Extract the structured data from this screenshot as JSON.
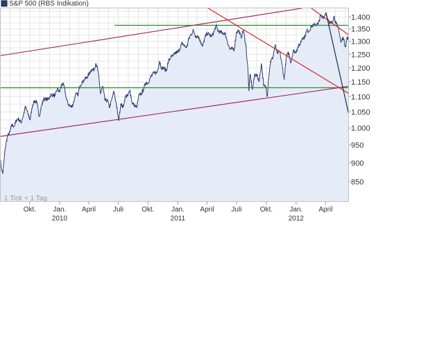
{
  "chart_data": {
    "type": "area",
    "title": "S&P 500 (RBS Indikation)",
    "note": "1 Tick = 1 Tag",
    "ylim": [
      800,
      1440
    ],
    "y_scale": "log",
    "y_ticks": [
      850,
      900,
      950,
      1000,
      1050,
      1100,
      1150,
      1200,
      1250,
      1300,
      1350,
      1400
    ],
    "y_tick_labels": [
      "850",
      "900",
      "950",
      "1.000",
      "1.050",
      "1.100",
      "1.150",
      "1.200",
      "1.250",
      "1.300",
      "1.350",
      "1.400"
    ],
    "x_range": [
      "2009-07-01",
      "2012-06-12"
    ],
    "x_ticks": [
      {
        "date": "2009-10-01",
        "label": "Okt.",
        "year": ""
      },
      {
        "date": "2010-01-01",
        "label": "Jan.",
        "year": "2010"
      },
      {
        "date": "2010-04-01",
        "label": "April",
        "year": ""
      },
      {
        "date": "2010-07-01",
        "label": "Juli",
        "year": ""
      },
      {
        "date": "2010-10-01",
        "label": "Okt.",
        "year": ""
      },
      {
        "date": "2011-01-01",
        "label": "Jan.",
        "year": "2011"
      },
      {
        "date": "2011-04-01",
        "label": "April",
        "year": ""
      },
      {
        "date": "2011-07-01",
        "label": "Juli",
        "year": ""
      },
      {
        "date": "2011-10-01",
        "label": "Okt.",
        "year": ""
      },
      {
        "date": "2012-01-01",
        "label": "Jan.",
        "year": "2012"
      },
      {
        "date": "2012-04-01",
        "label": "April",
        "year": ""
      }
    ],
    "grid": true,
    "series": [
      {
        "name": "S&P 500 (RBS Indikation)",
        "color": "#2a3f6e",
        "fill": "#e6ebf8",
        "points": [
          [
            "2009-07-01",
            920
          ],
          [
            "2009-07-06",
            880
          ],
          [
            "2009-07-10",
            872
          ],
          [
            "2009-07-17",
            940
          ],
          [
            "2009-07-24",
            975
          ],
          [
            "2009-07-31",
            987
          ],
          [
            "2009-08-07",
            1010
          ],
          [
            "2009-08-14",
            1005
          ],
          [
            "2009-08-21",
            1026
          ],
          [
            "2009-08-28",
            1028
          ],
          [
            "2009-09-04",
            1016
          ],
          [
            "2009-09-11",
            1040
          ],
          [
            "2009-09-18",
            1068
          ],
          [
            "2009-09-25",
            1045
          ],
          [
            "2009-10-02",
            1025
          ],
          [
            "2009-10-09",
            1071
          ],
          [
            "2009-10-16",
            1087
          ],
          [
            "2009-10-23",
            1079
          ],
          [
            "2009-10-30",
            1036
          ],
          [
            "2009-11-06",
            1069
          ],
          [
            "2009-11-13",
            1093
          ],
          [
            "2009-11-20",
            1091
          ],
          [
            "2009-11-27",
            1091
          ],
          [
            "2009-12-04",
            1105
          ],
          [
            "2009-12-11",
            1106
          ],
          [
            "2009-12-18",
            1102
          ],
          [
            "2009-12-25",
            1126
          ],
          [
            "2010-01-01",
            1115
          ],
          [
            "2010-01-08",
            1144
          ],
          [
            "2010-01-15",
            1136
          ],
          [
            "2010-01-22",
            1091
          ],
          [
            "2010-01-29",
            1073
          ],
          [
            "2010-02-05",
            1066
          ],
          [
            "2010-02-12",
            1075
          ],
          [
            "2010-02-19",
            1109
          ],
          [
            "2010-02-26",
            1104
          ],
          [
            "2010-03-05",
            1138
          ],
          [
            "2010-03-12",
            1149
          ],
          [
            "2010-03-19",
            1159
          ],
          [
            "2010-03-26",
            1166
          ],
          [
            "2010-04-02",
            1178
          ],
          [
            "2010-04-09",
            1194
          ],
          [
            "2010-04-16",
            1192
          ],
          [
            "2010-04-23",
            1217
          ],
          [
            "2010-04-30",
            1186
          ],
          [
            "2010-05-07",
            1110
          ],
          [
            "2010-05-14",
            1135
          ],
          [
            "2010-05-21",
            1087
          ],
          [
            "2010-05-28",
            1089
          ],
          [
            "2010-06-04",
            1064
          ],
          [
            "2010-06-11",
            1091
          ],
          [
            "2010-06-18",
            1117
          ],
          [
            "2010-06-25",
            1076
          ],
          [
            "2010-07-02",
            1022
          ],
          [
            "2010-07-09",
            1077
          ],
          [
            "2010-07-16",
            1064
          ],
          [
            "2010-07-23",
            1102
          ],
          [
            "2010-07-30",
            1101
          ],
          [
            "2010-08-06",
            1121
          ],
          [
            "2010-08-13",
            1079
          ],
          [
            "2010-08-20",
            1071
          ],
          [
            "2010-08-27",
            1064
          ],
          [
            "2010-09-03",
            1104
          ],
          [
            "2010-09-10",
            1109
          ],
          [
            "2010-09-17",
            1125
          ],
          [
            "2010-09-24",
            1148
          ],
          [
            "2010-10-01",
            1146
          ],
          [
            "2010-10-08",
            1165
          ],
          [
            "2010-10-15",
            1176
          ],
          [
            "2010-10-22",
            1183
          ],
          [
            "2010-10-29",
            1183
          ],
          [
            "2010-11-05",
            1225
          ],
          [
            "2010-11-12",
            1199
          ],
          [
            "2010-11-19",
            1199
          ],
          [
            "2010-11-26",
            1189
          ],
          [
            "2010-12-03",
            1224
          ],
          [
            "2010-12-10",
            1240
          ],
          [
            "2010-12-17",
            1243
          ],
          [
            "2010-12-24",
            1256
          ],
          [
            "2010-12-31",
            1257
          ],
          [
            "2011-01-07",
            1271
          ],
          [
            "2011-01-14",
            1293
          ],
          [
            "2011-01-21",
            1283
          ],
          [
            "2011-01-28",
            1276
          ],
          [
            "2011-02-04",
            1310
          ],
          [
            "2011-02-11",
            1329
          ],
          [
            "2011-02-18",
            1343
          ],
          [
            "2011-02-25",
            1320
          ],
          [
            "2011-03-04",
            1321
          ],
          [
            "2011-03-11",
            1304
          ],
          [
            "2011-03-18",
            1279
          ],
          [
            "2011-03-25",
            1313
          ],
          [
            "2011-04-01",
            1332
          ],
          [
            "2011-04-08",
            1328
          ],
          [
            "2011-04-15",
            1319
          ],
          [
            "2011-04-22",
            1337
          ],
          [
            "2011-04-29",
            1363
          ],
          [
            "2011-05-06",
            1340
          ],
          [
            "2011-05-13",
            1337
          ],
          [
            "2011-05-20",
            1333
          ],
          [
            "2011-05-27",
            1331
          ],
          [
            "2011-06-03",
            1300
          ],
          [
            "2011-06-10",
            1270
          ],
          [
            "2011-06-17",
            1271
          ],
          [
            "2011-06-24",
            1268
          ],
          [
            "2011-07-01",
            1339
          ],
          [
            "2011-07-08",
            1343
          ],
          [
            "2011-07-15",
            1316
          ],
          [
            "2011-07-22",
            1345
          ],
          [
            "2011-07-29",
            1292
          ],
          [
            "2011-08-05",
            1199
          ],
          [
            "2011-08-08",
            1119
          ],
          [
            "2011-08-12",
            1178
          ],
          [
            "2011-08-19",
            1123
          ],
          [
            "2011-08-26",
            1176
          ],
          [
            "2011-09-02",
            1173
          ],
          [
            "2011-09-09",
            1154
          ],
          [
            "2011-09-16",
            1216
          ],
          [
            "2011-09-23",
            1136
          ],
          [
            "2011-09-30",
            1131
          ],
          [
            "2011-10-04",
            1099
          ],
          [
            "2011-10-07",
            1155
          ],
          [
            "2011-10-14",
            1224
          ],
          [
            "2011-10-21",
            1238
          ],
          [
            "2011-10-28",
            1285
          ],
          [
            "2011-11-04",
            1253
          ],
          [
            "2011-11-11",
            1263
          ],
          [
            "2011-11-18",
            1215
          ],
          [
            "2011-11-25",
            1158
          ],
          [
            "2011-12-02",
            1244
          ],
          [
            "2011-12-09",
            1255
          ],
          [
            "2011-12-16",
            1219
          ],
          [
            "2011-12-23",
            1265
          ],
          [
            "2011-12-30",
            1257
          ],
          [
            "2012-01-06",
            1277
          ],
          [
            "2012-01-13",
            1289
          ],
          [
            "2012-01-20",
            1315
          ],
          [
            "2012-01-27",
            1316
          ],
          [
            "2012-02-03",
            1344
          ],
          [
            "2012-02-10",
            1342
          ],
          [
            "2012-02-17",
            1361
          ],
          [
            "2012-02-24",
            1365
          ],
          [
            "2012-03-02",
            1369
          ],
          [
            "2012-03-09",
            1370
          ],
          [
            "2012-03-16",
            1404
          ],
          [
            "2012-03-23",
            1397
          ],
          [
            "2012-03-30",
            1408
          ],
          [
            "2012-04-02",
            1419
          ],
          [
            "2012-04-06",
            1398
          ],
          [
            "2012-04-13",
            1370
          ],
          [
            "2012-04-20",
            1378
          ],
          [
            "2012-04-27",
            1403
          ],
          [
            "2012-05-04",
            1369
          ],
          [
            "2012-05-11",
            1353
          ],
          [
            "2012-05-18",
            1295
          ],
          [
            "2012-05-25",
            1318
          ],
          [
            "2012-06-01",
            1278
          ],
          [
            "2012-06-06",
            1315
          ],
          [
            "2012-06-12",
            1310
          ]
        ]
      }
    ],
    "horizontal_lines": [
      {
        "value": 1365,
        "color": "#2a8a2a"
      },
      {
        "value": 1130,
        "color": "#2a8a2a"
      }
    ],
    "trend_lines": [
      {
        "color": "#a03060",
        "from": [
          "2009-07-01",
          1245
        ],
        "to": [
          "2012-06-12",
          1470
        ]
      },
      {
        "color": "#a03060",
        "from": [
          "2009-07-01",
          975
        ],
        "to": [
          "2012-06-12",
          1135
        ]
      },
      {
        "color": "#dd2222",
        "from": [
          "2011-03-15",
          1455
        ],
        "to": [
          "2012-06-12",
          1110
        ]
      },
      {
        "color": "#dd2222",
        "from": [
          "2012-01-16",
          1470
        ],
        "to": [
          "2012-06-12",
          1325
        ]
      },
      {
        "color": "#1e2a50",
        "from": [
          "2012-04-02",
          1419
        ],
        "to": [
          "2012-06-12",
          1040
        ]
      }
    ]
  }
}
